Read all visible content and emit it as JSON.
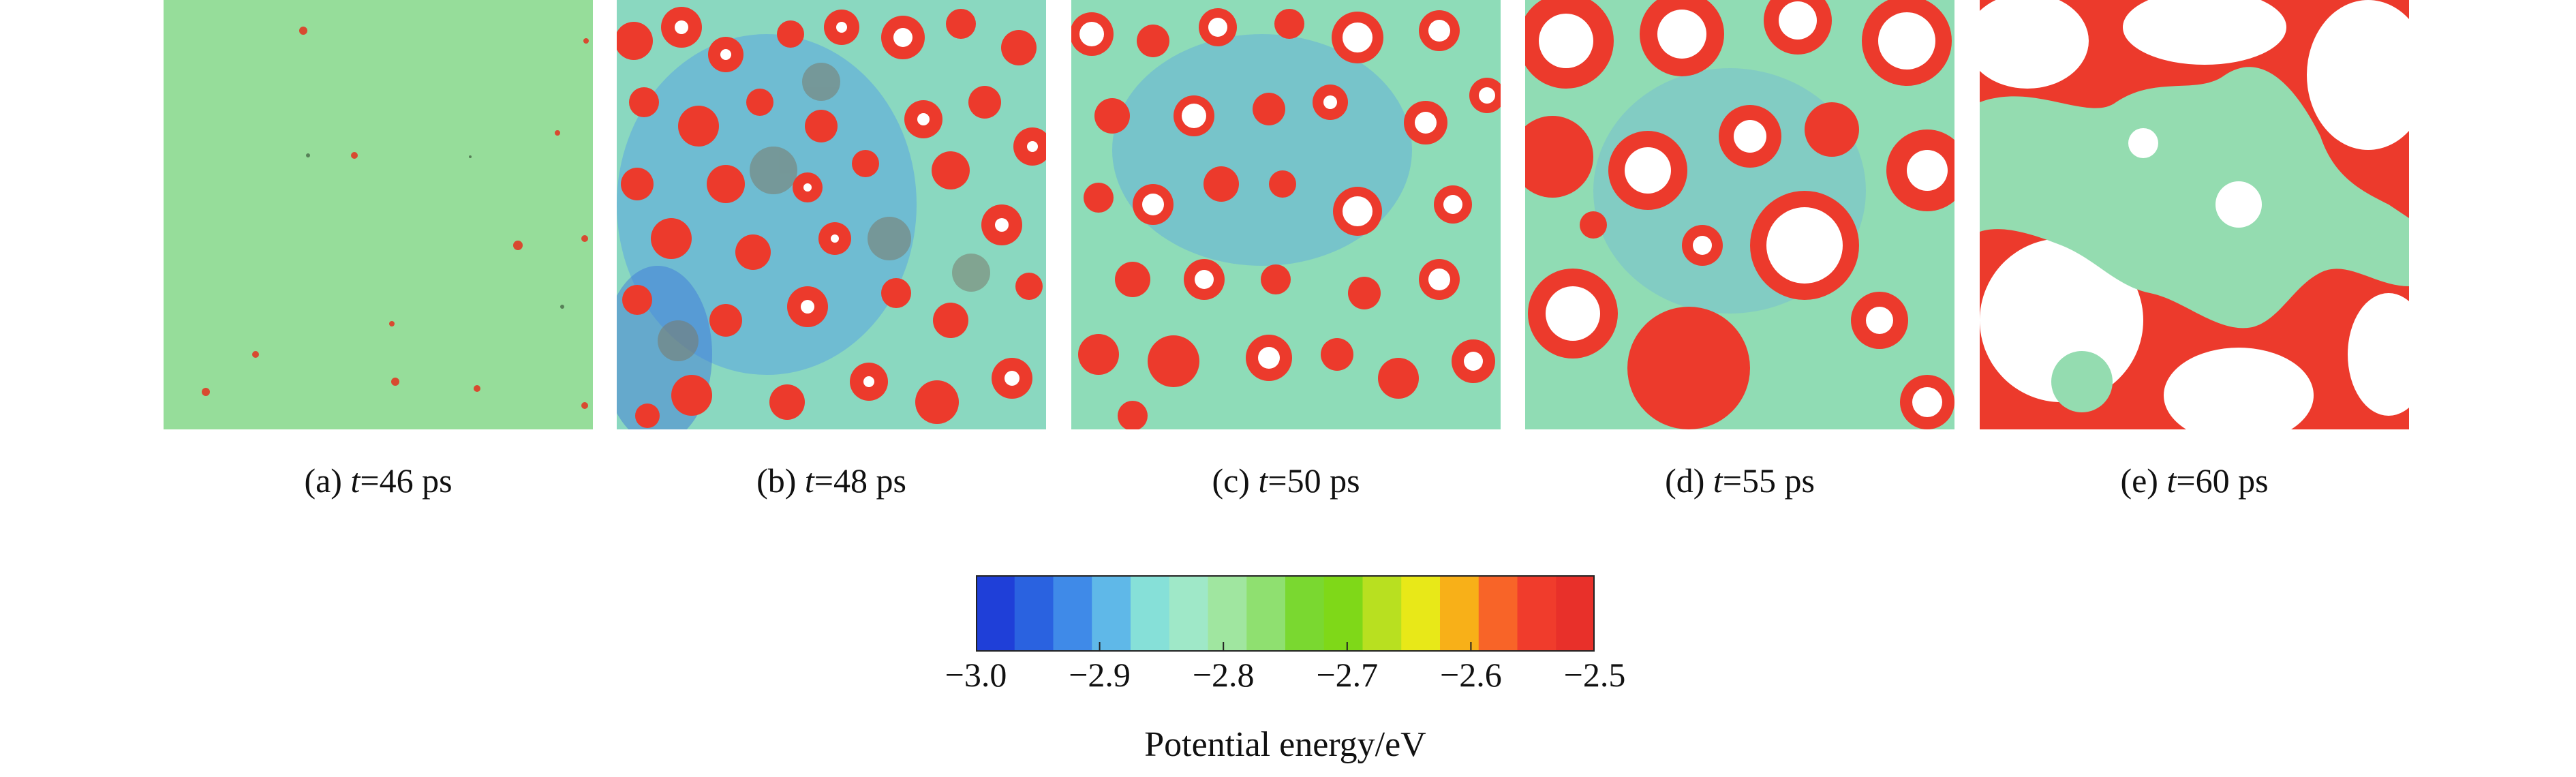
{
  "panels": [
    {
      "letter": "(a) ",
      "var": "t",
      "rest": "=46 ps",
      "time_ps": 46,
      "hole_fraction": 0.0
    },
    {
      "letter": "(b) ",
      "var": "t",
      "rest": "=48 ps",
      "time_ps": 48,
      "hole_fraction": 0.05
    },
    {
      "letter": "(c) ",
      "var": "t",
      "rest": "=50 ps",
      "time_ps": 50,
      "hole_fraction": 0.12
    },
    {
      "letter": "(d) ",
      "var": "t",
      "rest": "=55 ps",
      "time_ps": 55,
      "hole_fraction": 0.25
    },
    {
      "letter": "(e) ",
      "var": "t",
      "rest": "=60 ps",
      "time_ps": 60,
      "hole_fraction": 0.4
    }
  ],
  "colorbar": {
    "title": "Potential energy/eV",
    "min": -3.0,
    "max": -2.5,
    "ticks": [
      "−3.0",
      "−2.9",
      "−2.8",
      "−2.7",
      "−2.6",
      "−2.5"
    ],
    "tick_values": [
      -3.0,
      -2.9,
      -2.8,
      -2.7,
      -2.6,
      -2.5
    ],
    "colors": [
      "#1f3fd8",
      "#2a62e0",
      "#3f8ae8",
      "#5fb8e8",
      "#86e0d8",
      "#9fe8c8",
      "#a0e6a0",
      "#8fe070",
      "#7ad830",
      "#7fd818",
      "#b8e020",
      "#e8e818",
      "#f8b018",
      "#f86428",
      "#f03c2c",
      "#e8302a"
    ]
  },
  "colors": {
    "matrix": "#98e09a",
    "matrix_blue": "#5aa8e0",
    "droplet": "#ec3a2c",
    "hole": "#ffffff"
  }
}
